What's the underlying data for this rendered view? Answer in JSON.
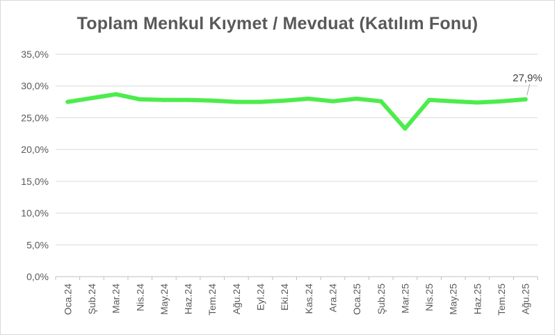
{
  "chart_data": {
    "type": "line",
    "title": "Toplam Menkul Kıymet / Mevduat (Katılım Fonu)",
    "xlabel": "",
    "ylabel": "",
    "ylim": [
      0,
      35
    ],
    "y_ticks": [
      "0,0%",
      "5,0%",
      "10,0%",
      "15,0%",
      "20,0%",
      "25,0%",
      "30,0%",
      "35,0%"
    ],
    "grid": true,
    "legend": "none",
    "categories": [
      "Oca.24",
      "Şub.24",
      "Mar.24",
      "Nis.24",
      "May.24",
      "Haz.24",
      "Tem.24",
      "Ağu.24",
      "Eyl.24",
      "Eki.24",
      "Kas.24",
      "Ara.24",
      "Oca.25",
      "Şub.25",
      "Mar.25",
      "Nis.25",
      "May.25",
      "Haz.25",
      "Tem.25",
      "Ağu.25"
    ],
    "series": [
      {
        "color": "#4cec4c",
        "values": [
          27.5,
          28.1,
          28.7,
          27.9,
          27.8,
          27.8,
          27.7,
          27.5,
          27.5,
          27.7,
          28.0,
          27.6,
          28.0,
          27.6,
          23.3,
          27.8,
          27.6,
          27.4,
          27.6,
          27.9
        ]
      }
    ],
    "data_labels": [
      {
        "index": 19,
        "text": "27,9%"
      }
    ]
  }
}
